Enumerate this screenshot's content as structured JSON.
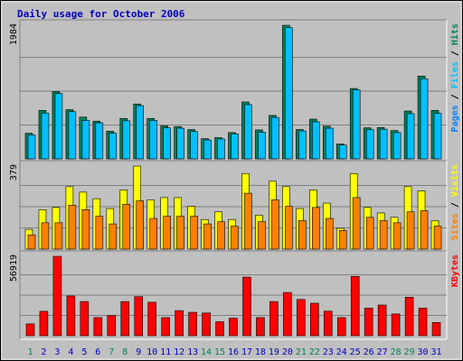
{
  "chart_data": {
    "type": "bar",
    "title": "Daily usage for October 2006",
    "categories": [
      "1",
      "2",
      "3",
      "4",
      "5",
      "6",
      "7",
      "8",
      "9",
      "10",
      "11",
      "12",
      "13",
      "14",
      "15",
      "16",
      "17",
      "18",
      "19",
      "20",
      "21",
      "22",
      "23",
      "24",
      "25",
      "26",
      "27",
      "28",
      "29",
      "30",
      "31"
    ],
    "weekend_days": [
      "1",
      "7",
      "8",
      "14",
      "15",
      "21",
      "22",
      "28",
      "29"
    ],
    "panels": [
      {
        "id": "hits-files-pages",
        "ylabel_parts": [
          "Pages",
          "Files",
          "Hits"
        ],
        "ymax_label": "1984",
        "ymax": 1984,
        "series": [
          {
            "name": "Hits",
            "color": "#00805c",
            "values": [
              380,
              720,
              1000,
              730,
              620,
              560,
              410,
              600,
              815,
              600,
              490,
              480,
              435,
              300,
              315,
              390,
              845,
              430,
              645,
              1984,
              435,
              590,
              485,
              220,
              1045,
              460,
              465,
              420,
              710,
              1230,
              720
            ]
          },
          {
            "name": "Files",
            "color": "#00c0ff",
            "values": [
              355,
              680,
              970,
              700,
              570,
              535,
              380,
              565,
              790,
              570,
              460,
              455,
              405,
              280,
              295,
              370,
              805,
              395,
              615,
              1950,
              415,
              550,
              455,
              205,
              1025,
              435,
              440,
              390,
              670,
              1190,
              675
            ]
          }
        ]
      },
      {
        "id": "visits-sites",
        "ylabel_parts": [
          "Sites",
          "Visits"
        ],
        "ymax_label": "379",
        "ymax": 379,
        "series": [
          {
            "name": "Visits",
            "color": "#ffff00",
            "values": [
              90,
              180,
              190,
              285,
              260,
              230,
              185,
              270,
              379,
              225,
              235,
              235,
              195,
              135,
              170,
              135,
              345,
              155,
              310,
              285,
              185,
              270,
              210,
              95,
              345,
              190,
              165,
              145,
              285,
              265,
              130
            ]
          },
          {
            "name": "Sites",
            "color": "#ff8000",
            "values": [
              65,
              120,
              120,
              200,
              180,
              150,
              115,
              205,
              220,
              140,
              150,
              150,
              150,
              115,
              125,
              105,
              255,
              125,
              225,
              195,
              130,
              190,
              140,
              85,
              235,
              145,
              130,
              120,
              170,
              175,
              105
            ]
          }
        ]
      },
      {
        "id": "kbytes",
        "ylabel_parts": [
          "KBytes"
        ],
        "ymax_label": "56919",
        "ymax": 56919,
        "series": [
          {
            "name": "KBytes",
            "color": "#ff0000",
            "values": [
              8500,
              17500,
              56919,
              28500,
              24500,
              13000,
              14500,
              24500,
              28000,
              24000,
              13000,
              18000,
              16800,
              16300,
              10000,
              12600,
              42000,
              13000,
              24500,
              31000,
              26000,
              23300,
              17600,
              13000,
              42500,
              19800,
              22000,
              15600,
              27600,
              19800,
              9500
            ]
          }
        ]
      }
    ],
    "colors": {
      "title": "#0000c0",
      "weekday_label": "#0000c0",
      "weekend_label": "#00805c",
      "panel_bg": "#c0c0c0",
      "frame_bg": "#c0c0c0",
      "grid": "#808080",
      "kbytes": "#ff0000",
      "pages": "#0080ff",
      "files": "#00c0ff",
      "hits": "#00805c",
      "visits": "#ffff00",
      "sites": "#ff8000"
    }
  }
}
